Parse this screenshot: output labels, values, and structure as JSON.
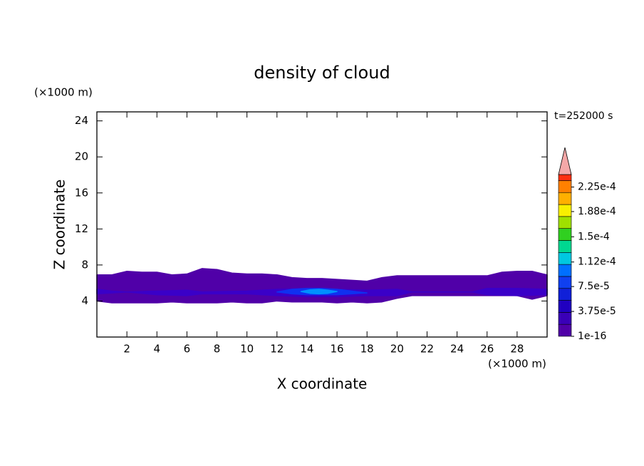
{
  "chart_data": {
    "type": "contour",
    "title": "density of cloud",
    "x_label": "X coordinate",
    "y_label": "Z coordinate",
    "x_unit": "(×1000 m)",
    "y_unit": "(×1000 m)",
    "annotation": "t=252000 s",
    "xlim": [
      0,
      30
    ],
    "ylim": [
      0,
      25
    ],
    "xticks": [
      2,
      4,
      6,
      8,
      10,
      12,
      14,
      16,
      18,
      20,
      22,
      24,
      26,
      28
    ],
    "yticks": [
      4,
      8,
      12,
      16,
      20,
      24
    ],
    "regions": [
      {
        "color": "#5000a8",
        "x": [
          0,
          1,
          2,
          3,
          4,
          5,
          6,
          7,
          8,
          9,
          10,
          11,
          12,
          13,
          14,
          15,
          16,
          17,
          18,
          19,
          20,
          21,
          22,
          23,
          24,
          25,
          26,
          27,
          28,
          29,
          30
        ],
        "top": [
          6.9,
          6.9,
          7.3,
          7.2,
          7.2,
          6.9,
          7.0,
          7.6,
          7.5,
          7.1,
          7.0,
          7.0,
          6.9,
          6.6,
          6.5,
          6.5,
          6.4,
          6.3,
          6.2,
          6.6,
          6.8,
          6.8,
          6.8,
          6.8,
          6.8,
          6.8,
          6.8,
          7.2,
          7.3,
          7.3,
          6.9
        ],
        "bottom": [
          4.0,
          3.8,
          3.8,
          3.8,
          3.8,
          3.9,
          3.8,
          3.8,
          3.8,
          3.9,
          3.8,
          3.8,
          4.0,
          3.9,
          3.9,
          3.9,
          3.8,
          3.9,
          3.8,
          3.9,
          4.3,
          4.6,
          4.6,
          4.6,
          4.6,
          4.6,
          4.6,
          4.6,
          4.6,
          4.2,
          4.6
        ]
      },
      {
        "color": "#3a00c8",
        "x": [
          0,
          1,
          2,
          4,
          6,
          7,
          10,
          12,
          14,
          16,
          18,
          20,
          21,
          25,
          26,
          28,
          30
        ],
        "top": [
          5.3,
          5.1,
          5.0,
          5.1,
          5.2,
          5.0,
          5.1,
          5.3,
          5.4,
          5.3,
          5.2,
          5.3,
          5.0,
          5.0,
          5.4,
          5.4,
          5.3
        ],
        "bottom": [
          4.8,
          4.9,
          5.0,
          4.7,
          4.6,
          4.8,
          4.8,
          4.6,
          4.5,
          4.5,
          4.6,
          4.6,
          5.0,
          5.0,
          4.7,
          4.6,
          4.7
        ]
      },
      {
        "color": "#1030f0",
        "x": [
          12,
          13,
          14,
          15,
          16,
          17,
          18
        ],
        "top": [
          5.0,
          5.3,
          5.4,
          5.4,
          5.3,
          5.1,
          4.9
        ],
        "bottom": [
          5.0,
          4.8,
          4.7,
          4.7,
          4.7,
          4.8,
          4.9
        ]
      },
      {
        "color": "#0090ff",
        "x": [
          13.6,
          14.2,
          14.8,
          15.4,
          16.0
        ],
        "top": [
          5.05,
          5.25,
          5.3,
          5.2,
          5.05
        ],
        "bottom": [
          5.05,
          4.85,
          4.8,
          4.85,
          5.05
        ]
      }
    ],
    "colorbar": {
      "lim": [
        1e-16,
        0.00024375
      ],
      "colors": [
        "#5000a8",
        "#3a00b8",
        "#2000c0",
        "#1020d8",
        "#1040f0",
        "#0070ff",
        "#00c8e0",
        "#00d890",
        "#30d020",
        "#a0e000",
        "#f8f000",
        "#ffb000",
        "#ff8000"
      ],
      "top_color": "#ff3010",
      "over_color": "#f4a8a8",
      "ticks": [
        1e-16,
        {
          "value": 3.75e-05,
          "label": "3.75e-5"
        },
        {
          "value": 7.5e-05,
          "label": "7.5e-5"
        },
        {
          "value": 0.000112,
          "label": "1.12e-4"
        },
        {
          "value": 0.00015,
          "label": "1.5e-4"
        },
        {
          "value": 0.000188,
          "label": "1.88e-4"
        },
        {
          "value": 0.000225,
          "label": "2.25e-4"
        }
      ]
    }
  }
}
